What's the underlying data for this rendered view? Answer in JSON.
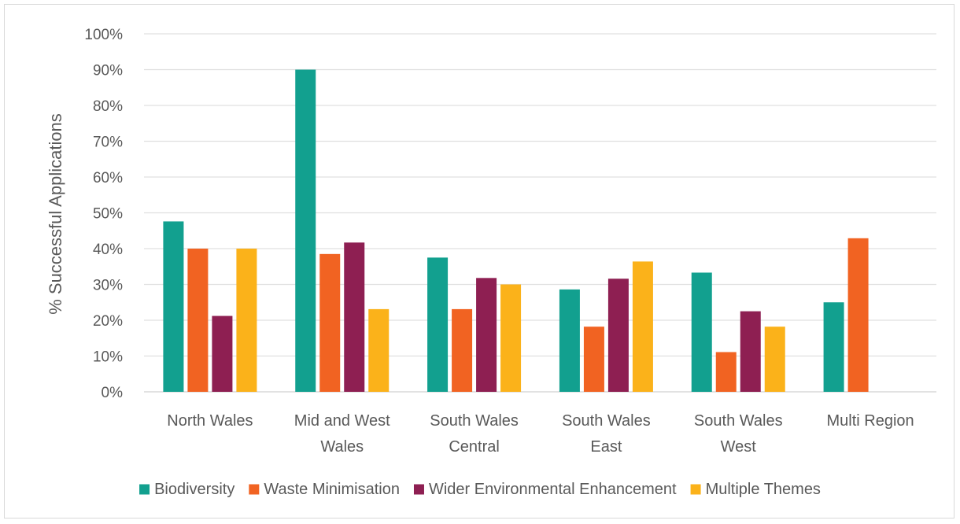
{
  "chart_data": {
    "type": "bar",
    "ylabel": "% Successful Applications",
    "xlabel": "",
    "ylim": [
      0,
      100
    ],
    "ytick_step": 10,
    "ytick_suffix": "%",
    "grid": true,
    "legend_position": "bottom",
    "categories": [
      [
        "North Wales"
      ],
      [
        "Mid and West",
        "Wales"
      ],
      [
        "South Wales",
        "Central"
      ],
      [
        "South Wales",
        "East"
      ],
      [
        "South Wales",
        "West"
      ],
      [
        "Multi Region"
      ]
    ],
    "series": [
      {
        "name": "Biodiversity",
        "color": "#12a08f",
        "values": [
          47.6,
          90,
          37.5,
          28.6,
          33.3,
          25
        ]
      },
      {
        "name": "Waste Minimisation",
        "color": "#f16322",
        "values": [
          40,
          38.5,
          23.1,
          18.2,
          11.1,
          42.9
        ]
      },
      {
        "name": "Wider Environmental Enhancement",
        "color": "#8e1f52",
        "values": [
          21.2,
          41.7,
          31.8,
          31.6,
          22.5,
          null
        ]
      },
      {
        "name": "Multiple Themes",
        "color": "#fbb21a",
        "values": [
          40,
          23.1,
          30,
          36.4,
          18.2,
          null
        ]
      }
    ]
  }
}
